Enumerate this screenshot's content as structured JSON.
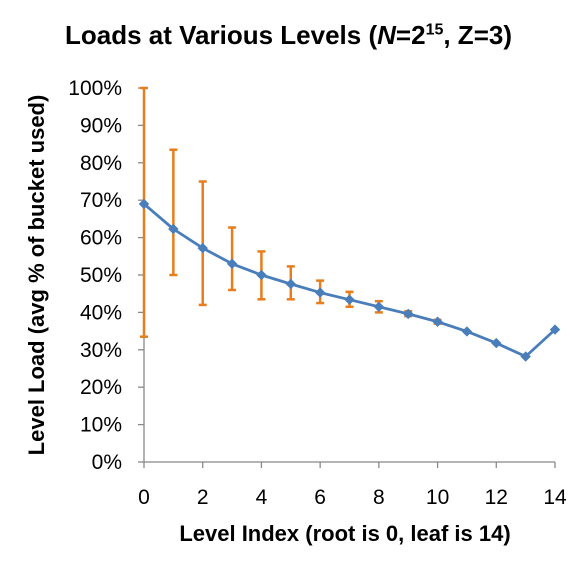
{
  "chart_data": {
    "type": "line",
    "title": {
      "before": "Loads at Various Levels (",
      "var": "N",
      "equals": "=2",
      "exponent": "15",
      "after": ", Z=3)"
    },
    "xlabel": "Level Index (root is 0, leaf is 14)",
    "ylabel": "Level Load (avg % of bucket used)",
    "x": [
      0,
      1,
      2,
      3,
      4,
      5,
      6,
      7,
      8,
      9,
      10,
      11,
      12,
      13,
      14
    ],
    "series": [
      {
        "values": [
          69,
          62.3,
          57.2,
          53,
          50,
          47.6,
          45.3,
          43.4,
          41.5,
          39.6,
          37.5,
          34.9,
          31.8,
          28.2,
          35.4
        ],
        "error_low": [
          33.5,
          50,
          42,
          46,
          43.5,
          43.5,
          42.5,
          41.5,
          40,
          39,
          37,
          34.9,
          31.8,
          28.2,
          35.4
        ],
        "error_high": [
          100,
          83.5,
          75,
          62.7,
          56.3,
          52.3,
          48.5,
          45.5,
          43,
          40.3,
          38,
          34.9,
          31.8,
          28.2,
          35.4
        ]
      }
    ],
    "xlim": [
      0,
      14
    ],
    "ylim": [
      0,
      100
    ],
    "xticks": [
      "0",
      "2",
      "4",
      "6",
      "8",
      "10",
      "12",
      "14"
    ],
    "yticks": [
      "0%",
      "10%",
      "20%",
      "30%",
      "40%",
      "50%",
      "60%",
      "70%",
      "80%",
      "90%",
      "100%"
    ],
    "grid": false,
    "legend": "none",
    "colors": {
      "line": "#4a7ebb",
      "error_bar": "#e87d1e",
      "axis": "#888888",
      "text": "#000000"
    }
  }
}
